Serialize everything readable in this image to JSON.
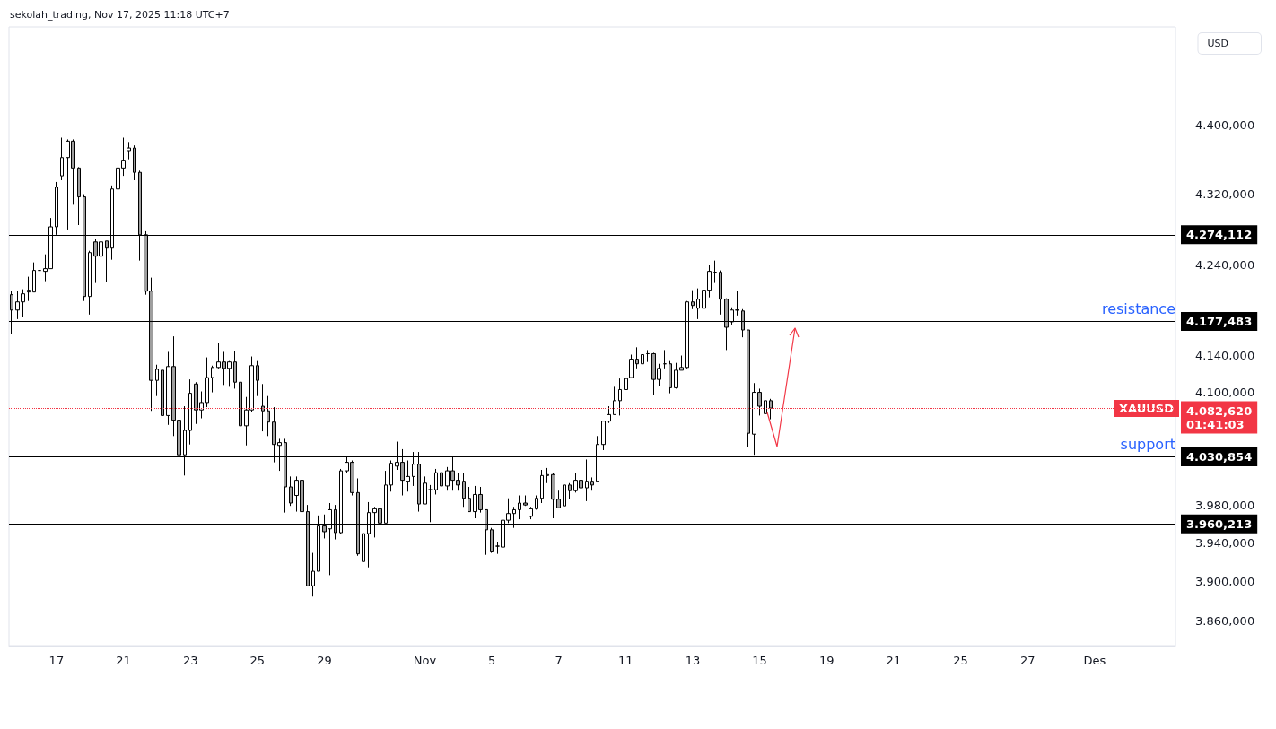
{
  "chart_data": {
    "type": "candlestick",
    "title": "sekolah_trading, Nov 17, 2025 11:18 UTC+7",
    "categories": [
      null,
      null,
      null,
      null,
      null,
      null,
      null,
      null,
      "17",
      null,
      null,
      null,
      null,
      null,
      null,
      null,
      null,
      null,
      null,
      null,
      "21",
      null,
      null,
      null,
      null,
      null,
      null,
      null,
      null,
      null,
      null,
      null,
      "23",
      null,
      null,
      null,
      null,
      null,
      null,
      null,
      null,
      null,
      null,
      null,
      "25",
      null,
      null,
      null,
      null,
      null,
      null,
      null,
      null,
      null,
      null,
      null,
      "29",
      null,
      null,
      null,
      null,
      null,
      null,
      null,
      null,
      null,
      null,
      null,
      null,
      null,
      null,
      null,
      null,
      null,
      "Nov",
      null,
      null,
      null,
      null,
      null,
      null,
      null,
      null,
      null,
      null,
      null,
      "5",
      null,
      null,
      null,
      null,
      null,
      null,
      null,
      null,
      null,
      null,
      null,
      "7",
      null,
      null,
      null,
      null,
      null,
      null,
      null,
      null,
      null,
      null,
      null,
      "11",
      null,
      null,
      null,
      null,
      null,
      null,
      null,
      null,
      null,
      null,
      null,
      "13",
      null,
      null,
      null,
      null,
      null,
      null,
      null,
      null,
      null,
      null,
      null,
      "15",
      null,
      null,
      null,
      null,
      null,
      null,
      null,
      null,
      null,
      null,
      null,
      "19",
      null,
      null,
      null,
      null,
      null,
      null,
      null,
      null,
      null,
      null,
      null,
      "21",
      null,
      null,
      null,
      null,
      null,
      null,
      null,
      null,
      null,
      null,
      null,
      "25",
      null,
      null,
      null,
      null,
      null,
      null,
      null,
      null,
      null,
      null,
      null,
      "27",
      null,
      null,
      null,
      null,
      null,
      null,
      null,
      null,
      null,
      null,
      null,
      "Des",
      null,
      null,
      null,
      null,
      null,
      null,
      null,
      null,
      null,
      null,
      null,
      null,
      null,
      null
    ],
    "ohlc": [
      [
        4207,
        4211,
        4164,
        4190
      ],
      [
        4190,
        4211,
        4180,
        4199
      ],
      [
        4199,
        4213,
        4182,
        4208
      ],
      [
        4212,
        4227,
        4200,
        4210
      ],
      [
        4210,
        4243,
        4210,
        4234
      ],
      [
        4234,
        4236,
        4203,
        4234
      ],
      [
        4233,
        4252,
        4222,
        4236
      ],
      [
        4236,
        4293,
        4236,
        4283
      ],
      [
        4283,
        4334,
        4274,
        4328
      ],
      [
        4341,
        4385,
        4336,
        4362
      ],
      [
        4362,
        4383,
        4280,
        4381
      ],
      [
        4381,
        4383,
        4308,
        4350
      ],
      [
        4350,
        4351,
        4285,
        4317
      ],
      [
        4317,
        4320,
        4200,
        4205
      ],
      [
        4205,
        4256,
        4185,
        4254
      ],
      [
        4266,
        4269,
        4220,
        4250
      ],
      [
        4250,
        4271,
        4230,
        4266
      ],
      [
        4267,
        4267,
        4221,
        4259
      ],
      [
        4259,
        4330,
        4246,
        4326
      ],
      [
        4326,
        4359,
        4295,
        4350
      ],
      [
        4350,
        4385,
        4341,
        4359
      ],
      [
        4370,
        4380,
        4360,
        4373
      ],
      [
        4373,
        4376,
        4336,
        4345
      ],
      [
        4345,
        4347,
        4245,
        4274
      ],
      [
        4274,
        4278,
        4207,
        4211
      ],
      [
        4211,
        4226,
        4080,
        4113
      ],
      [
        4113,
        4130,
        4096,
        4125
      ],
      [
        4124,
        4128,
        4005,
        4075
      ],
      [
        4075,
        4144,
        4065,
        4128
      ],
      [
        4128,
        4161,
        4053,
        4070
      ],
      [
        4070,
        4101,
        4015,
        4033
      ],
      [
        4033,
        4085,
        4011,
        4059
      ],
      [
        4059,
        4114,
        4044,
        4099
      ],
      [
        4109,
        4111,
        4066,
        4081
      ],
      [
        4081,
        4101,
        4072,
        4089
      ],
      [
        4089,
        4138,
        4084,
        4116
      ],
      [
        4116,
        4129,
        4100,
        4127
      ],
      [
        4127,
        4154,
        4126,
        4133
      ],
      [
        4133,
        4144,
        4108,
        4126
      ],
      [
        4126,
        4134,
        4106,
        4133
      ],
      [
        4133,
        4145,
        4104,
        4111
      ],
      [
        4111,
        4117,
        4048,
        4064
      ],
      [
        4064,
        4095,
        4043,
        4081
      ],
      [
        4081,
        4139,
        4079,
        4129
      ],
      [
        4129,
        4134,
        4096,
        4113
      ],
      [
        4085,
        4109,
        4058,
        4080
      ],
      [
        4080,
        4096,
        4053,
        4068
      ],
      [
        4068,
        4084,
        4025,
        4044
      ],
      [
        4043,
        4050,
        4016,
        4046
      ],
      [
        4046,
        4050,
        3972,
        3999
      ],
      [
        3999,
        4010,
        3979,
        3982
      ],
      [
        3990,
        4010,
        3973,
        4006
      ],
      [
        4006,
        4019,
        3963,
        3973
      ],
      [
        3973,
        3980,
        3896,
        3896
      ],
      [
        3896,
        3930,
        3885,
        3911
      ],
      [
        3911,
        3969,
        3911,
        3958
      ],
      [
        3958,
        3970,
        3945,
        3952
      ],
      [
        3955,
        3982,
        3907,
        3975
      ],
      [
        3975,
        3980,
        3944,
        3951
      ],
      [
        3951,
        4018,
        3950,
        4016
      ],
      [
        4016,
        4031,
        4014,
        4025
      ],
      [
        4025,
        4027,
        3990,
        3993
      ],
      [
        3993,
        4008,
        3927,
        3929
      ],
      [
        3921,
        3964,
        3916,
        3950
      ],
      [
        3950,
        3983,
        3915,
        3972
      ],
      [
        3972,
        3978,
        3946,
        3976
      ],
      [
        3976,
        4012,
        3961,
        3961
      ],
      [
        3961,
        4016,
        3961,
        4001
      ],
      [
        4001,
        4027,
        3994,
        4024
      ],
      [
        4021,
        4047,
        4017,
        4025
      ],
      [
        4025,
        4039,
        3990,
        4006
      ],
      [
        4005,
        4027,
        3994,
        4010
      ],
      [
        4010,
        4036,
        4000,
        4023
      ],
      [
        4023,
        4036,
        3973,
        3981
      ],
      [
        3981,
        4010,
        3981,
        4003
      ],
      [
        3996,
        4001,
        3962,
        3996
      ],
      [
        3996,
        4018,
        3991,
        4014
      ],
      [
        4014,
        4028,
        3993,
        4000
      ],
      [
        4000,
        4020,
        3995,
        4016
      ],
      [
        4016,
        4031,
        3995,
        4006
      ],
      [
        4006,
        4014,
        3995,
        4001
      ],
      [
        4005,
        4014,
        3978,
        3987
      ],
      [
        3987,
        3999,
        3973,
        3973
      ],
      [
        3973,
        4000,
        3966,
        3991
      ],
      [
        3991,
        3999,
        3972,
        3975
      ],
      [
        3975,
        3975,
        3928,
        3954
      ],
      [
        3954,
        3956,
        3930,
        3931
      ],
      [
        3937,
        3941,
        3929,
        3937
      ],
      [
        3936,
        3978,
        3936,
        3964
      ],
      [
        3964,
        3987,
        3961,
        3971
      ],
      [
        3971,
        3978,
        3956,
        3975
      ],
      [
        3975,
        3990,
        3965,
        3982
      ],
      [
        3982,
        3990,
        3979,
        3980
      ],
      [
        3968,
        3978,
        3965,
        3976
      ],
      [
        3976,
        3990,
        3975,
        3987
      ],
      [
        3987,
        4017,
        3982,
        4011
      ],
      [
        4012,
        4019,
        4003,
        4011
      ],
      [
        4012,
        4014,
        3966,
        3986
      ],
      [
        3986,
        3995,
        3977,
        3977
      ],
      [
        3979,
        4003,
        3979,
        4001
      ],
      [
        4001,
        4003,
        3986,
        3995
      ],
      [
        3995,
        4014,
        3993,
        4006
      ],
      [
        4006,
        4012,
        3992,
        3998
      ],
      [
        3998,
        4028,
        3984,
        4005
      ],
      [
        4005,
        4009,
        3995,
        4001
      ],
      [
        4005,
        4053,
        4005,
        4044
      ],
      [
        4044,
        4069,
        4038,
        4069
      ],
      [
        4069,
        4085,
        4067,
        4076
      ],
      [
        4076,
        4106,
        4076,
        4091
      ],
      [
        4091,
        4115,
        4075,
        4103
      ],
      [
        4103,
        4116,
        4103,
        4115
      ],
      [
        4116,
        4141,
        4116,
        4136
      ],
      [
        4136,
        4149,
        4126,
        4131
      ],
      [
        4131,
        4146,
        4126,
        4141
      ],
      [
        4142,
        4146,
        4133,
        4142
      ],
      [
        4142,
        4143,
        4097,
        4114
      ],
      [
        4114,
        4131,
        4107,
        4126
      ],
      [
        4131,
        4146,
        4126,
        4131
      ],
      [
        4131,
        4134,
        4099,
        4105
      ],
      [
        4105,
        4132,
        4104,
        4124
      ],
      [
        4124,
        4140,
        4124,
        4127
      ],
      [
        4127,
        4200,
        4126,
        4199
      ],
      [
        4199,
        4212,
        4191,
        4195
      ],
      [
        4192,
        4214,
        4180,
        4202
      ],
      [
        4192,
        4220,
        4184,
        4212
      ],
      [
        4212,
        4240,
        4204,
        4233
      ],
      [
        4232,
        4245,
        4220,
        4232
      ],
      [
        4232,
        4234,
        4185,
        4202
      ],
      [
        4202,
        4203,
        4146,
        4171
      ],
      [
        4177,
        4193,
        4174,
        4190
      ],
      [
        4190,
        4211,
        4184,
        4190
      ],
      [
        4189,
        4191,
        4160,
        4168
      ],
      [
        4168,
        4168,
        4041,
        4056
      ],
      [
        4055,
        4110,
        4033,
        4100
      ],
      [
        4100,
        4104,
        4075,
        4085
      ],
      [
        4077,
        4095,
        4070,
        4091
      ],
      [
        4091,
        4093,
        4071,
        4083
      ],
      null,
      null,
      null,
      null,
      null,
      null,
      null,
      null,
      null,
      null,
      null,
      null,
      null,
      null,
      null,
      null,
      null,
      null,
      null,
      null,
      null,
      null,
      null,
      null,
      null,
      null,
      null,
      null,
      null,
      null,
      null,
      null,
      null,
      null,
      null,
      null,
      null,
      null,
      null,
      null,
      null,
      null,
      null,
      null,
      null,
      null,
      null,
      null,
      null,
      null,
      null,
      null,
      null,
      null,
      null,
      null,
      null,
      null,
      null,
      null,
      null,
      null,
      null,
      null,
      null,
      null,
      null,
      null,
      null,
      null,
      null,
      null
    ],
    "log": "y",
    "ylim": [
      3835,
      4515
    ],
    "yticks": [
      {
        "value": 3860,
        "label": "3.860,000"
      },
      {
        "value": 3900,
        "label": "3.900,000"
      },
      {
        "value": 3940,
        "label": "3.940,000"
      },
      {
        "value": 3980,
        "label": "3.980,000"
      },
      {
        "value": 4100,
        "label": "4.100,000"
      },
      {
        "value": 4140,
        "label": "4.140,000"
      },
      {
        "value": 4240,
        "label": "4.240,000"
      },
      {
        "value": 4320,
        "label": "4.320,000"
      },
      {
        "value": 4400,
        "label": "4.400,000"
      }
    ],
    "ref_lines": [
      {
        "axis": "y",
        "value": 4274.112,
        "label": "4.274,112",
        "color": "#000000"
      },
      {
        "axis": "y",
        "value": 4177.483,
        "label": "4.177,483",
        "color": "#000000"
      },
      {
        "axis": "y",
        "value": 4030.854,
        "label": "4.030,854",
        "color": "#000000"
      },
      {
        "axis": "y",
        "value": 3960.213,
        "label": "3.960,213",
        "color": "#000000"
      },
      {
        "axis": "y",
        "value": 4082.62,
        "label": "4.082,620\n01:41:03",
        "color": "#f23645",
        "line_style": "dotted"
      }
    ],
    "annotations": [
      {
        "text": "resistance",
        "y": 4177.483
      },
      {
        "text": "support",
        "y": 4030.854
      },
      {
        "text": "XAUUSD",
        "y": 4082.62
      },
      "USD"
    ]
  }
}
